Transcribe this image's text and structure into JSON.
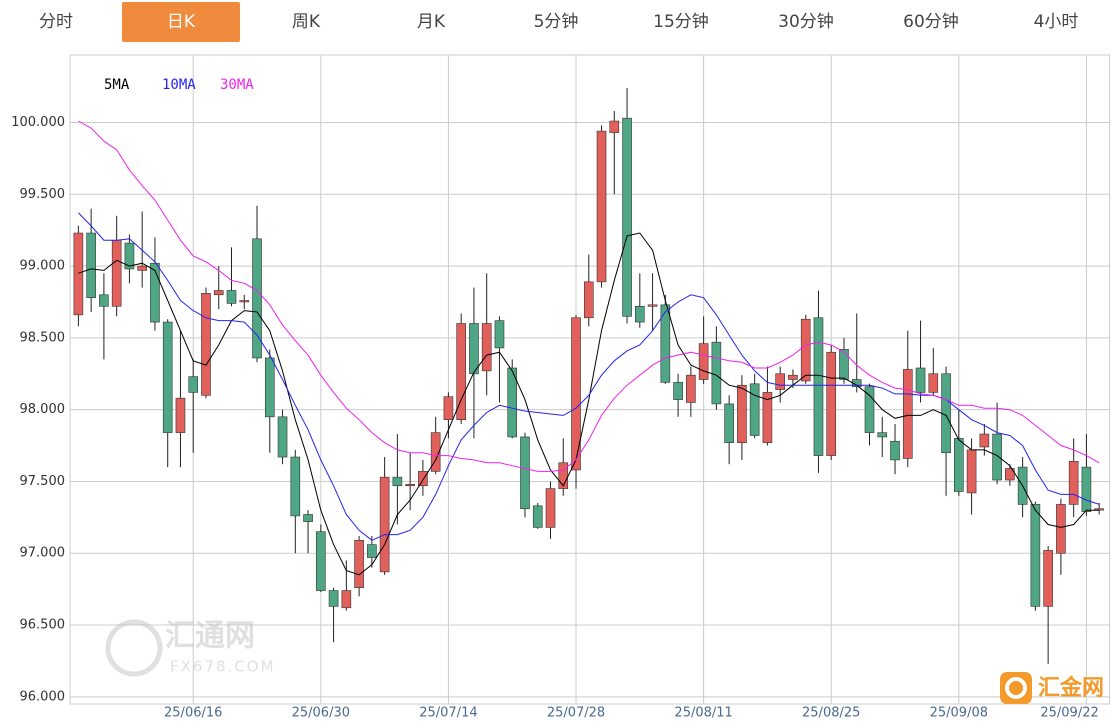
{
  "tabs": [
    "分时",
    "日K",
    "周K",
    "月K",
    "5分钟",
    "15分钟",
    "30分钟",
    "60分钟",
    "4小时"
  ],
  "active_tab": 1,
  "watermark": {
    "brand": "汇通网",
    "site": "FX678.COM",
    "logo": "汇金网"
  },
  "chart_data": {
    "type": "candlestick",
    "categories": [
      null,
      null,
      null,
      null,
      null,
      null,
      null,
      null,
      null,
      "25/06/16",
      null,
      null,
      null,
      null,
      null,
      null,
      null,
      null,
      null,
      "25/06/30",
      null,
      null,
      null,
      null,
      null,
      null,
      null,
      null,
      null,
      "25/07/14",
      null,
      null,
      null,
      null,
      null,
      null,
      null,
      null,
      null,
      "25/07/28",
      null,
      null,
      null,
      null,
      null,
      null,
      null,
      null,
      null,
      "25/08/11",
      null,
      null,
      null,
      null,
      null,
      null,
      null,
      null,
      null,
      "25/08/25",
      null,
      null,
      null,
      null,
      null,
      null,
      null,
      null,
      null,
      "25/09/08",
      null,
      null,
      null,
      null,
      null,
      null,
      null,
      null,
      null,
      "25/09/22",
      null
    ],
    "open": [
      98.66,
      99.23,
      98.8,
      98.72,
      99.16,
      98.97,
      99.02,
      98.61,
      97.84,
      98.23,
      98.1,
      98.8,
      98.83,
      98.75,
      99.19,
      98.36,
      97.95,
      97.67,
      97.27,
      97.15,
      96.74,
      96.62,
      96.76,
      97.06,
      96.87,
      97.53,
      97.47,
      97.47,
      97.57,
      97.93,
      97.93,
      98.6,
      98.27,
      98.62,
      98.29,
      97.81,
      97.33,
      97.18,
      97.45,
      97.58,
      98.64,
      98.89,
      99.93,
      100.03,
      98.72,
      98.72,
      98.73,
      98.19,
      98.05,
      98.21,
      98.47,
      98.04,
      97.77,
      98.18,
      97.77,
      98.14,
      98.21,
      98.2,
      98.64,
      97.68,
      98.42,
      98.21,
      98.16,
      97.84,
      97.78,
      97.66,
      98.29,
      98.12,
      98.25,
      97.8,
      97.42,
      97.74,
      97.83,
      97.51,
      97.6,
      97.34,
      96.63,
      97.0,
      97.34,
      97.6,
      97.3
    ],
    "high": [
      99.28,
      99.4,
      98.95,
      99.35,
      99.22,
      99.38,
      99.2,
      98.63,
      98.55,
      98.35,
      98.85,
      99.0,
      99.13,
      98.8,
      99.42,
      98.42,
      98.0,
      97.72,
      97.3,
      97.2,
      96.76,
      96.95,
      97.12,
      97.12,
      97.67,
      97.83,
      97.7,
      97.65,
      97.95,
      98.12,
      98.67,
      98.85,
      98.95,
      98.65,
      98.35,
      97.84,
      97.35,
      97.5,
      97.8,
      98.66,
      99.08,
      99.98,
      100.08,
      100.24,
      98.95,
      98.95,
      98.8,
      98.25,
      98.3,
      98.65,
      98.58,
      98.1,
      98.24,
      98.25,
      98.3,
      98.3,
      98.28,
      98.66,
      98.83,
      98.45,
      98.5,
      98.67,
      98.18,
      97.95,
      97.9,
      98.55,
      98.62,
      98.43,
      98.3,
      98.0,
      97.8,
      97.9,
      98.05,
      97.62,
      97.67,
      97.36,
      97.05,
      97.38,
      97.8,
      97.83,
      97.35
    ],
    "low": [
      98.58,
      98.68,
      98.35,
      98.65,
      98.88,
      98.85,
      98.55,
      97.6,
      97.6,
      97.7,
      98.08,
      98.7,
      98.72,
      98.7,
      98.33,
      97.7,
      97.62,
      97.0,
      97.0,
      96.73,
      96.38,
      96.6,
      96.7,
      96.9,
      96.85,
      97.2,
      97.3,
      97.4,
      97.55,
      97.8,
      97.9,
      97.8,
      98.1,
      98.05,
      97.8,
      97.25,
      97.17,
      97.1,
      97.4,
      97.45,
      98.58,
      98.85,
      99.5,
      98.6,
      98.57,
      98.55,
      98.18,
      97.95,
      97.95,
      98.18,
      98.0,
      97.62,
      97.65,
      97.8,
      97.75,
      98.05,
      98.15,
      98.18,
      97.56,
      97.65,
      98.18,
      98.12,
      97.75,
      97.67,
      97.55,
      97.6,
      98.05,
      98.1,
      97.4,
      97.4,
      97.27,
      97.68,
      97.48,
      97.47,
      97.25,
      96.6,
      96.23,
      96.85,
      97.25,
      97.26,
      97.27
    ],
    "close": [
      99.23,
      98.78,
      98.72,
      99.18,
      98.98,
      99.0,
      98.61,
      97.84,
      98.08,
      98.12,
      98.81,
      98.83,
      98.74,
      98.76,
      98.36,
      97.95,
      97.67,
      97.26,
      97.22,
      96.74,
      96.63,
      96.74,
      97.09,
      96.97,
      97.53,
      97.47,
      97.48,
      97.57,
      97.84,
      98.09,
      98.6,
      98.25,
      98.6,
      98.43,
      97.81,
      97.31,
      97.18,
      97.45,
      97.63,
      98.64,
      98.89,
      99.94,
      100.01,
      98.65,
      98.61,
      98.73,
      98.19,
      98.07,
      98.24,
      98.46,
      98.04,
      97.77,
      98.17,
      97.82,
      98.12,
      98.25,
      98.24,
      98.63,
      97.68,
      98.4,
      98.21,
      98.16,
      97.84,
      97.81,
      97.65,
      98.28,
      98.12,
      98.25,
      97.7,
      97.43,
      97.72,
      97.83,
      97.51,
      97.59,
      97.34,
      96.63,
      97.02,
      97.34,
      97.64,
      97.29,
      97.31
    ],
    "up_color": "#e1605c",
    "down_color": "#4fa684",
    "series": [
      {
        "name": "5MA",
        "color": "#000000",
        "values": [
          98.95,
          98.98,
          98.97,
          99.04,
          99.0,
          99.02,
          98.97,
          98.76,
          98.55,
          98.34,
          98.31,
          98.45,
          98.62,
          98.69,
          98.68,
          98.55,
          98.27,
          97.93,
          97.65,
          97.3,
          97.06,
          96.88,
          96.85,
          96.92,
          97.06,
          97.27,
          97.37,
          97.51,
          97.65,
          97.86,
          98.07,
          98.26,
          98.38,
          98.4,
          98.27,
          98.07,
          97.79,
          97.58,
          97.47,
          97.65,
          98.07,
          98.55,
          98.9,
          99.21,
          99.23,
          99.11,
          98.76,
          98.45,
          98.31,
          98.27,
          98.24,
          98.17,
          98.15,
          98.1,
          98.07,
          98.1,
          98.17,
          98.24,
          98.24,
          98.22,
          98.22,
          98.17,
          98.1,
          98.0,
          97.94,
          97.96,
          97.96,
          98.0,
          97.96,
          97.79,
          97.72,
          97.72,
          97.68,
          97.61,
          97.47,
          97.3,
          97.2,
          97.18,
          97.2,
          97.3,
          97.3
        ]
      },
      {
        "name": "10MA",
        "color": "#2424ee",
        "values": [
          99.37,
          99.28,
          99.18,
          99.18,
          99.19,
          99.11,
          99.03,
          98.9,
          98.76,
          98.69,
          98.64,
          98.62,
          98.62,
          98.61,
          98.52,
          98.38,
          98.21,
          98.03,
          97.86,
          97.65,
          97.47,
          97.27,
          97.16,
          97.09,
          97.13,
          97.13,
          97.16,
          97.25,
          97.41,
          97.61,
          97.79,
          97.89,
          97.98,
          98.03,
          98.01,
          97.99,
          97.98,
          97.97,
          97.96,
          98.01,
          98.1,
          98.24,
          98.34,
          98.41,
          98.45,
          98.55,
          98.68,
          98.75,
          98.8,
          98.78,
          98.66,
          98.52,
          98.38,
          98.27,
          98.19,
          98.17,
          98.17,
          98.17,
          98.17,
          98.17,
          98.17,
          98.17,
          98.17,
          98.15,
          98.11,
          98.11,
          98.1,
          98.1,
          98.07,
          98.0,
          97.93,
          97.89,
          97.84,
          97.82,
          97.75,
          97.58,
          97.44,
          97.41,
          97.41,
          97.37,
          97.34
        ]
      },
      {
        "name": "30MA",
        "color": "#ee22ee",
        "values": [
          100.01,
          99.96,
          99.87,
          99.81,
          99.67,
          99.56,
          99.46,
          99.32,
          99.18,
          99.07,
          99.03,
          98.97,
          98.9,
          98.88,
          98.83,
          98.73,
          98.59,
          98.48,
          98.38,
          98.24,
          98.12,
          98.01,
          97.93,
          97.84,
          97.77,
          97.72,
          97.7,
          97.7,
          97.68,
          97.68,
          97.66,
          97.65,
          97.63,
          97.63,
          97.61,
          97.59,
          97.57,
          97.57,
          97.58,
          97.65,
          97.79,
          97.96,
          98.08,
          98.17,
          98.24,
          98.31,
          98.36,
          98.38,
          98.4,
          98.38,
          98.36,
          98.34,
          98.33,
          98.29,
          98.29,
          98.33,
          98.38,
          98.45,
          98.47,
          98.45,
          98.4,
          98.31,
          98.24,
          98.19,
          98.15,
          98.14,
          98.11,
          98.1,
          98.07,
          98.03,
          98.03,
          98.01,
          98.01,
          98.0,
          97.96,
          97.89,
          97.82,
          97.75,
          97.72,
          97.68,
          97.63
        ]
      }
    ],
    "ylim": [
      95.95,
      100.47
    ],
    "yticks": [
      {
        "value": 96,
        "label": "96.000"
      },
      {
        "value": 96.5,
        "label": "96.500"
      },
      {
        "value": 97,
        "label": "97.000"
      },
      {
        "value": 97.5,
        "label": "97.500"
      },
      {
        "value": 98,
        "label": "98.000"
      },
      {
        "value": 98.5,
        "label": "98.500"
      },
      {
        "value": 99,
        "label": "99.000"
      },
      {
        "value": 99.5,
        "label": "99.500"
      },
      {
        "value": 100,
        "label": "100.000"
      }
    ],
    "grid": true,
    "legend": "top-left"
  }
}
